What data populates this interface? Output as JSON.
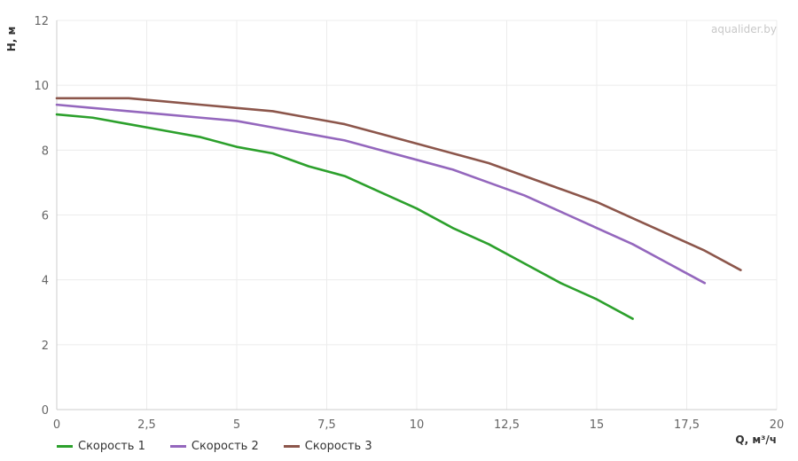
{
  "chart_data": {
    "type": "line",
    "watermark": "aqualider.by",
    "xlabel": "Q, м³/ч",
    "ylabel": "H, м",
    "xlim": [
      0,
      20
    ],
    "ylim": [
      0,
      12
    ],
    "x_ticks": [
      "0",
      "2,5",
      "5",
      "7,5",
      "10",
      "12,5",
      "15",
      "17,5",
      "20"
    ],
    "x_tick_values": [
      0,
      2.5,
      5,
      7.5,
      10,
      12.5,
      15,
      17.5,
      20
    ],
    "y_ticks": [
      "0",
      "2",
      "4",
      "6",
      "8",
      "10",
      "12"
    ],
    "y_tick_values": [
      0,
      2,
      4,
      6,
      8,
      10,
      12
    ],
    "grid": true,
    "legend_position": "bottom-left",
    "series": [
      {
        "name": "Скорость 1",
        "color": "#2ca02c",
        "x": [
          0,
          1,
          2,
          3,
          4,
          5,
          6,
          7,
          8,
          9,
          10,
          11,
          12,
          13,
          14,
          15,
          16
        ],
        "y": [
          9.1,
          9.0,
          8.8,
          8.6,
          8.4,
          8.1,
          7.9,
          7.5,
          7.2,
          6.7,
          6.2,
          5.6,
          5.1,
          4.5,
          3.9,
          3.4,
          2.8
        ]
      },
      {
        "name": "Скорость 2",
        "color": "#9467bd",
        "x": [
          0,
          1,
          2,
          3,
          4,
          5,
          6,
          7,
          8,
          9,
          10,
          11,
          12,
          13,
          14,
          15,
          16,
          17,
          18
        ],
        "y": [
          9.4,
          9.3,
          9.2,
          9.1,
          9.0,
          8.9,
          8.7,
          8.5,
          8.3,
          8.0,
          7.7,
          7.4,
          7.0,
          6.6,
          6.1,
          5.6,
          5.1,
          4.5,
          3.9
        ]
      },
      {
        "name": "Скорость 3",
        "color": "#8c564b",
        "x": [
          0,
          1,
          2,
          3,
          4,
          5,
          6,
          7,
          8,
          9,
          10,
          11,
          12,
          13,
          14,
          15,
          16,
          17,
          18,
          19
        ],
        "y": [
          9.6,
          9.6,
          9.6,
          9.5,
          9.4,
          9.3,
          9.2,
          9.0,
          8.8,
          8.5,
          8.2,
          7.9,
          7.6,
          7.2,
          6.8,
          6.4,
          5.9,
          5.4,
          4.9,
          4.3
        ]
      }
    ]
  }
}
